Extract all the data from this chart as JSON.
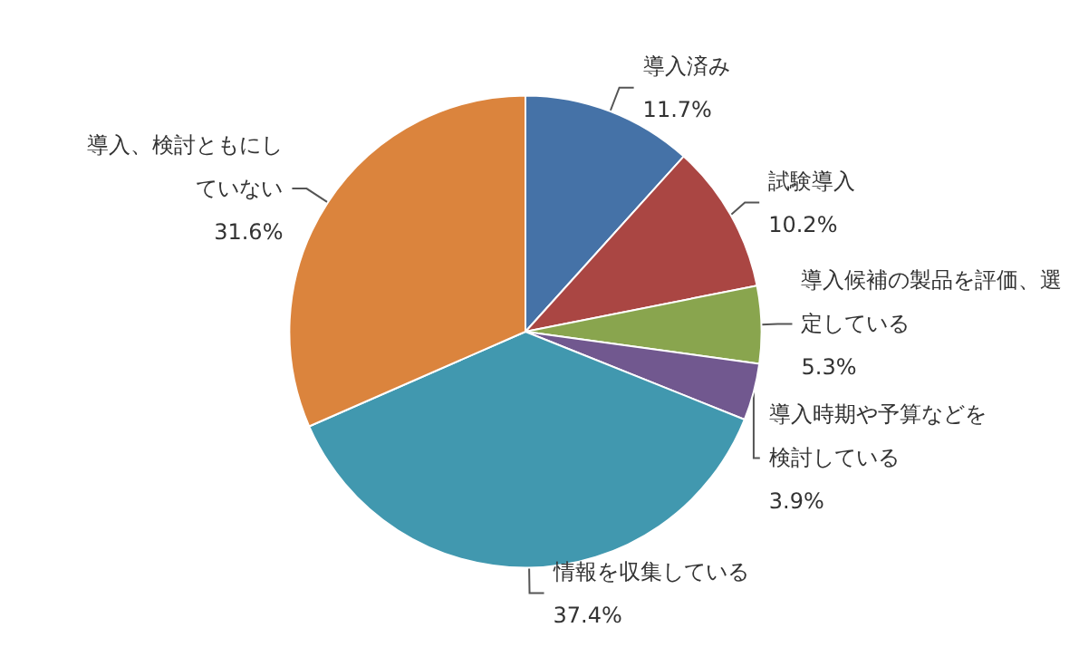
{
  "chart_data": {
    "type": "pie",
    "categories": [
      "導入済み",
      "試験導入",
      "導入候補の製品を評価、選定している",
      "導入時期や予算などを検討している",
      "情報を収集している",
      "導入、検討ともにしていない"
    ],
    "values": [
      11.7,
      10.2,
      5.3,
      3.9,
      37.4,
      31.6
    ],
    "value_labels": [
      "11.7%",
      "10.2%",
      "5.3%",
      "3.9%",
      "37.4%",
      "31.6%"
    ],
    "colors": [
      "#4572a7",
      "#aa4643",
      "#89a54e",
      "#71588f",
      "#4198af",
      "#db843d"
    ],
    "legend": false
  }
}
